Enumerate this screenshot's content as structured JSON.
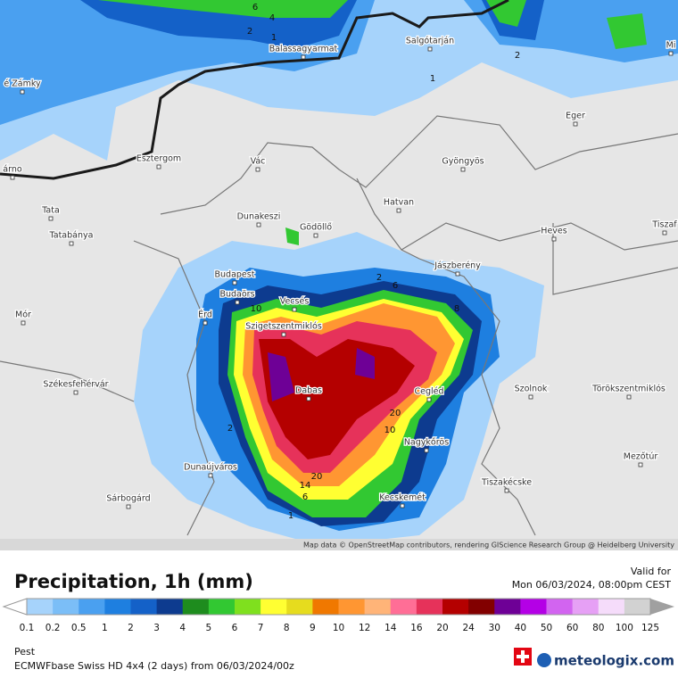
{
  "map": {
    "cities": [
      "Balassagyarmat",
      "Salgótarján",
      "é Zámky",
      "Eger",
      "árno",
      "Esztergom",
      "Vác",
      "Gyöngyös",
      "Tata",
      "Hatvan",
      "Dunakeszi",
      "Gödöllő",
      "Tatabánya",
      "Heves",
      "Tiszaf",
      "Jászberény",
      "Budapest",
      "Budaörs",
      "Vecsés",
      "Mór",
      "Érd",
      "Szigetszentmiklós",
      "Székesfehérvár",
      "Dabas",
      "Cegléd",
      "Szolnok",
      "Törökszentmiklós",
      "Nagykőrös",
      "Mezőtúr",
      "Dunaújváros",
      "Tiszakécske",
      "Kecskemét",
      "Sárbogárd",
      "Mi"
    ],
    "contour_labels": [
      "6",
      "4",
      "2",
      "1",
      "1",
      "2",
      "2",
      "6",
      "8",
      "10",
      "20",
      "10",
      "2",
      "14",
      "20",
      "6",
      "1"
    ],
    "attribution": "Map data © OpenStreetMap contributors, rendering GIScience Research Group @ Heidelberg University"
  },
  "legend": {
    "title": "Precipitation, 1h (mm)",
    "valid_label": "Valid for",
    "valid_time": "Mon 06/03/2024, 08:00pm CEST",
    "labels": [
      "0.1",
      "0.2",
      "0.5",
      "1",
      "2",
      "3",
      "4",
      "5",
      "6",
      "7",
      "8",
      "9",
      "10",
      "12",
      "14",
      "16",
      "20",
      "24",
      "30",
      "40",
      "50",
      "60",
      "80",
      "100",
      "125"
    ],
    "colors": [
      "#a6d3fb",
      "#7bbef7",
      "#4aa0f0",
      "#1e7fe0",
      "#1461c8",
      "#0d3b8f",
      "#1e8c1e",
      "#32c832",
      "#7fe01e",
      "#ffff32",
      "#e6dc1e",
      "#f07800",
      "#ff9632",
      "#ffb478",
      "#ff6e96",
      "#e6325a",
      "#b40000",
      "#820000",
      "#6e0096",
      "#b400e6",
      "#d264f0",
      "#e6a0f5",
      "#f5dcfa",
      "#d2d2d2"
    ]
  },
  "footer": {
    "region": "Pest",
    "model": "ECMWFbase Swiss HD 4x4 (2 days) from 06/03/2024/00z",
    "brand": "meteologix.com"
  }
}
